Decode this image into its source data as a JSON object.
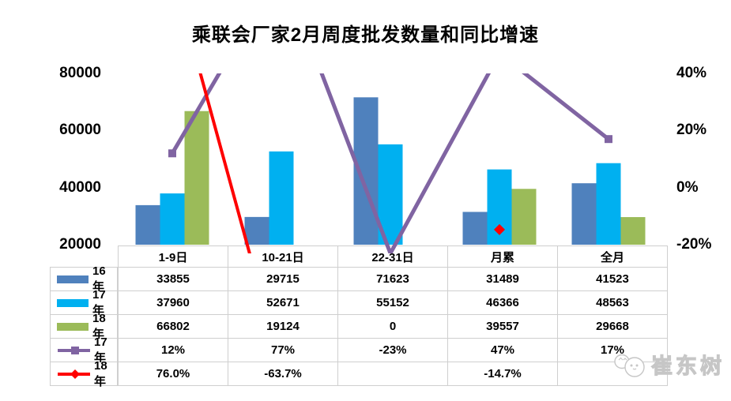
{
  "title": "乘联会厂家2月周度批发数量和同比增速",
  "axes": {
    "left_ticks": [
      "80000",
      "60000",
      "40000",
      "20000"
    ],
    "right_ticks": [
      "40%",
      "20%",
      "0%",
      "-20%"
    ]
  },
  "colors": {
    "bar_16": "#4F81BD",
    "bar_17": "#00B0F0",
    "bar_18": "#9BBB59",
    "line_17": "#8064A2",
    "line_18": "#FE0000",
    "grid_line": "#cfcfcf",
    "text": "#000000"
  },
  "chart_data": {
    "type": "bar",
    "subtype": "combo bar+line, dual axis",
    "title": "乘联会厂家2月周度批发数量和同比增速",
    "categories": [
      "1-9日",
      "10-21日",
      "22-31日",
      "月累",
      "全月"
    ],
    "bar_series": [
      {
        "name": "16年",
        "color": "#4F81BD",
        "axis": "left",
        "values": [
          33855,
          29715,
          71623,
          31489,
          41523
        ]
      },
      {
        "name": "17年",
        "color": "#00B0F0",
        "axis": "left",
        "values": [
          37960,
          52671,
          55152,
          46366,
          48563
        ]
      },
      {
        "name": "18年",
        "color": "#9BBB59",
        "axis": "left",
        "values": [
          66802,
          19124,
          0,
          39557,
          29668
        ]
      }
    ],
    "line_series": [
      {
        "name": "17年",
        "color": "#8064A2",
        "marker": "square",
        "axis": "right",
        "values": [
          12,
          77,
          -23,
          47,
          17
        ],
        "labels": [
          "12%",
          "77%",
          "-23%",
          "47%",
          "17%"
        ]
      },
      {
        "name": "18年",
        "color": "#FE0000",
        "marker": "diamond",
        "axis": "right",
        "values": [
          76.0,
          -63.7,
          null,
          -14.7,
          null
        ],
        "labels": [
          "76.0%",
          "-63.7%",
          "",
          "-14.7%",
          ""
        ]
      }
    ],
    "left_axis": {
      "min": 20000,
      "max": 80000,
      "ticks": [
        20000,
        40000,
        60000,
        80000
      ]
    },
    "right_axis": {
      "min": -20,
      "max": 40,
      "ticks": [
        -20,
        0,
        20,
        40
      ],
      "unit": "%"
    },
    "grid": false,
    "legend_position": "table-left-column",
    "data_table_shown": true
  },
  "watermark": {
    "text": "崔东树",
    "icon": "chick-avatar-icon"
  }
}
